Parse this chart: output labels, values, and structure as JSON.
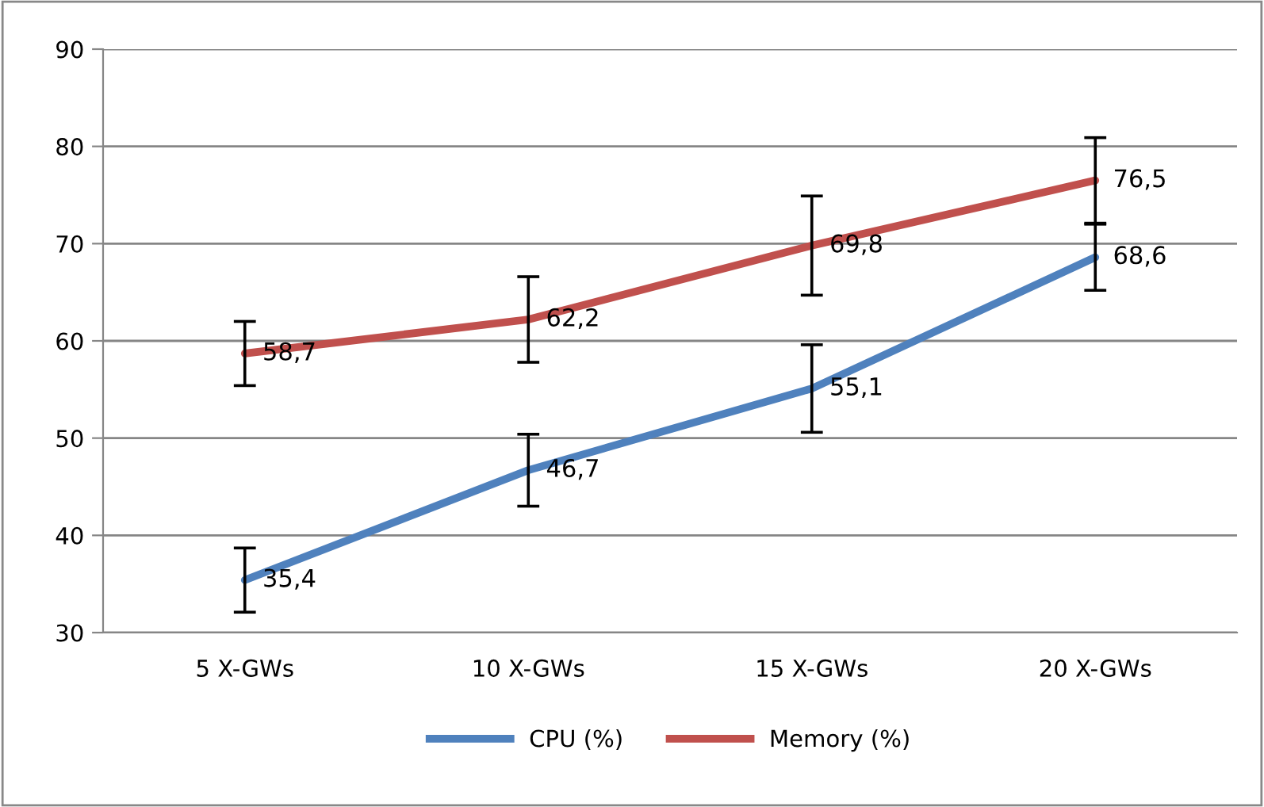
{
  "chart_data": {
    "type": "line",
    "categories": [
      "5 X-GWs",
      "10 X-GWs",
      "15 X-GWs",
      "20 X-GWs"
    ],
    "series": [
      {
        "name": "CPU (%)",
        "color": "#4f81bd",
        "values": [
          35.4,
          46.7,
          55.1,
          68.6
        ],
        "errors": [
          3.3,
          3.7,
          4.5,
          3.4
        ],
        "value_labels": [
          "35,4",
          "46,7",
          "55,1",
          "68,6"
        ]
      },
      {
        "name": "Memory (%)",
        "color": "#c0504d",
        "values": [
          58.7,
          62.2,
          69.8,
          76.5
        ],
        "errors": [
          3.3,
          4.4,
          5.1,
          4.4
        ],
        "value_labels": [
          "58,7",
          "62,2",
          "69,8",
          "76,5"
        ]
      }
    ],
    "ylim": [
      30,
      90
    ],
    "yticks": [
      30,
      40,
      50,
      60,
      70,
      80,
      90
    ],
    "grid": "y",
    "legend": "bottom",
    "marker": "none",
    "line_style": "solid"
  }
}
